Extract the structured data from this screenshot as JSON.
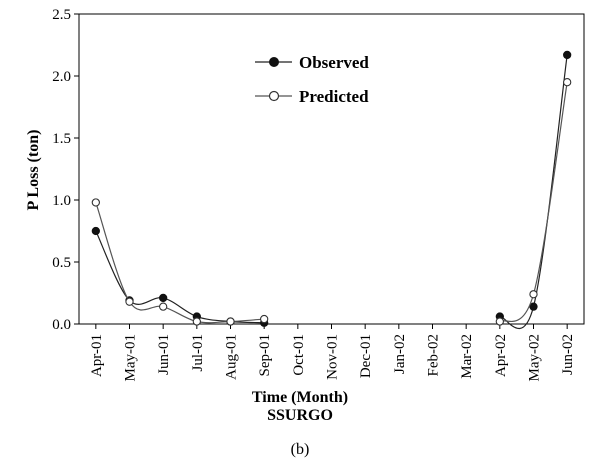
{
  "chart_data": {
    "type": "line",
    "categories": [
      "Apr-01",
      "May-01",
      "Jun-01",
      "Jul-01",
      "Aug-01",
      "Sep-01",
      "Oct-01",
      "Nov-01",
      "Dec-01",
      "Jan-02",
      "Feb-02",
      "Mar-02",
      "Apr-02",
      "May-02",
      "Jun-02"
    ],
    "xlabel": "Time (Month)",
    "subtitle": "SSURGO",
    "ylabel": "P Loss (ton)",
    "ylim": [
      0,
      2.5
    ],
    "yticks": [
      "0.0",
      "0.5",
      "1.0",
      "1.5",
      "2.0",
      "2.5"
    ],
    "legend_position": "top-center",
    "series": [
      {
        "name": "Observed",
        "marker": "filled-circle",
        "color": "#222222",
        "values": [
          0.75,
          0.19,
          0.21,
          0.06,
          0.02,
          0.01,
          null,
          null,
          null,
          null,
          null,
          null,
          0.06,
          0.14,
          2.17
        ]
      },
      {
        "name": "Predicted",
        "marker": "open-circle",
        "color": "#555555",
        "values": [
          0.98,
          0.18,
          0.14,
          0.02,
          0.02,
          0.04,
          null,
          null,
          null,
          null,
          null,
          null,
          0.02,
          0.24,
          1.95
        ]
      }
    ],
    "caption": "(b)"
  }
}
